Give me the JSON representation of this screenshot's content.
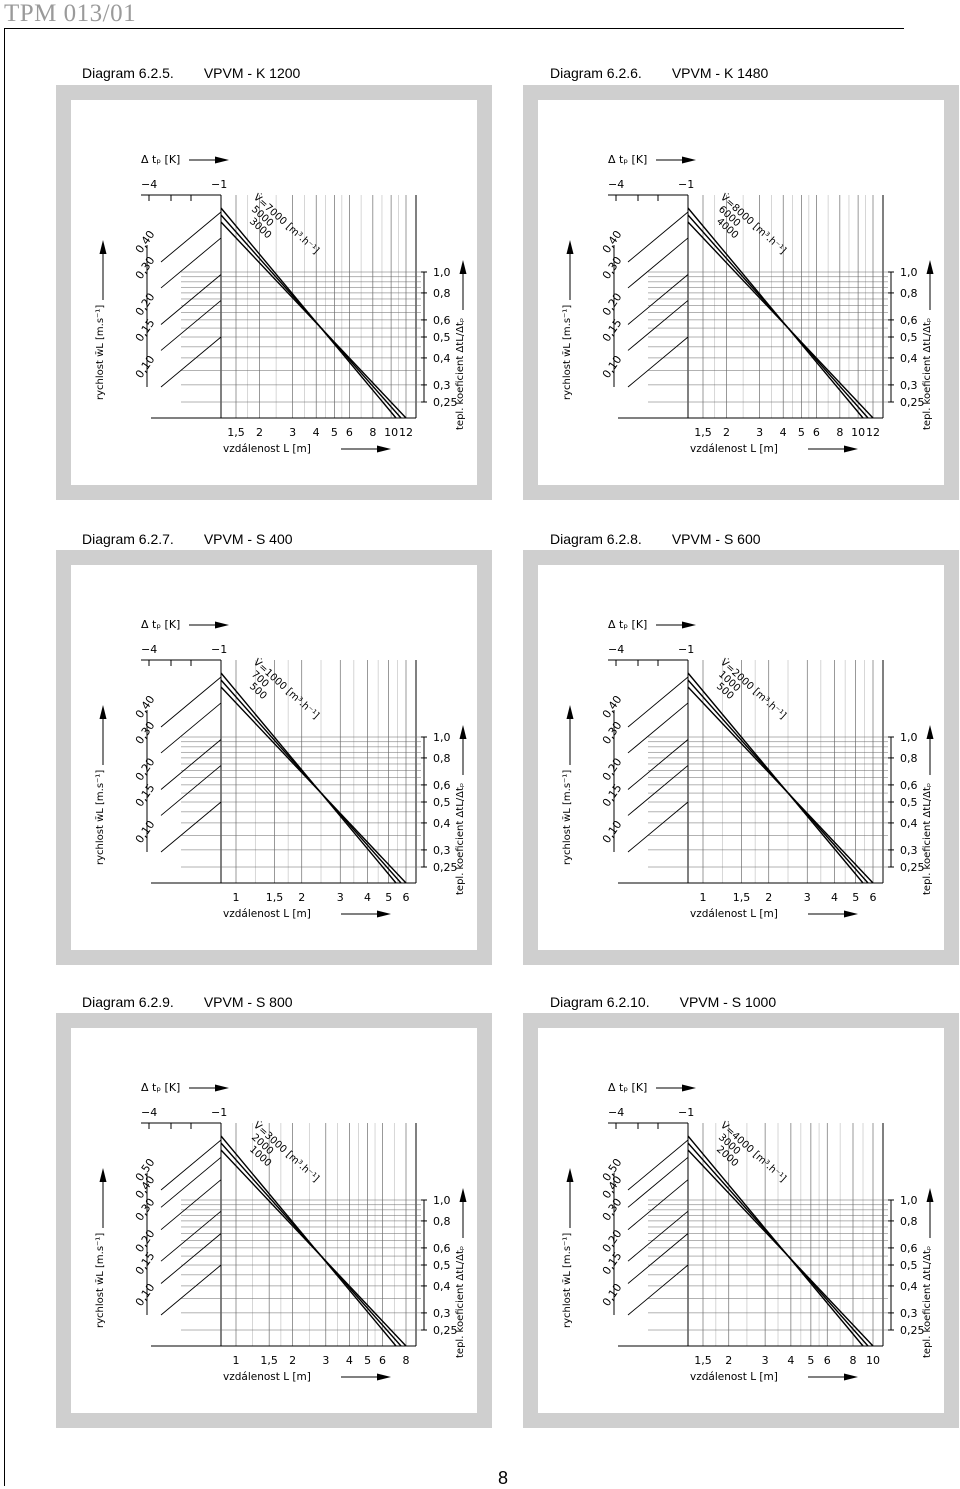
{
  "document": {
    "id": "TPM 013/01",
    "page_number": "8"
  },
  "labels": {
    "dt_p": "Δ tₚ [K]",
    "tick_dt_left": "−4",
    "tick_dt_right": "−1",
    "velocity_axis": "rychlost w̄L [m.s⁻¹]",
    "distance_axis": "vzdálenost L [m]",
    "coefficient_axis": "tepl. koeficient ΔtL/Δtₚ"
  },
  "chart_data": [
    {
      "type": "line",
      "diagram": "Diagram 6.2.5.",
      "title": "VPVM - K 1200",
      "velocity_ticks": [
        "0,10",
        "0,15",
        "0,20",
        "0,30",
        "0,40"
      ],
      "distance_ticks": [
        "1,5",
        "2",
        "3",
        "4",
        "5",
        "6",
        "8",
        "10",
        "12"
      ],
      "coefficient_ticks": [
        "1,0",
        "0,8",
        "0,6",
        "0,5",
        "0,4",
        "0,3",
        "0,25"
      ],
      "series": [
        {
          "name": "V̇=7000 [m³.h⁻¹]",
          "flow": 7000
        },
        {
          "name": "5000",
          "flow": 5000
        },
        {
          "name": "3000",
          "flow": 3000
        }
      ]
    },
    {
      "type": "line",
      "diagram": "Diagram 6.2.6.",
      "title": "VPVM - K 1480",
      "velocity_ticks": [
        "0,10",
        "0,15",
        "0,20",
        "0,30",
        "0,40"
      ],
      "distance_ticks": [
        "1,5",
        "2",
        "3",
        "4",
        "5",
        "6",
        "8",
        "10",
        "12"
      ],
      "coefficient_ticks": [
        "1,0",
        "0,8",
        "0,6",
        "0,5",
        "0,4",
        "0,3",
        "0,25"
      ],
      "series": [
        {
          "name": "V̇=8000 [m³.h⁻¹]",
          "flow": 8000
        },
        {
          "name": "6000",
          "flow": 6000
        },
        {
          "name": "4000",
          "flow": 4000
        }
      ]
    },
    {
      "type": "line",
      "diagram": "Diagram 6.2.7.",
      "title": "VPVM - S 400",
      "velocity_ticks": [
        "0,10",
        "0,15",
        "0,20",
        "0,30",
        "0,40"
      ],
      "distance_ticks": [
        "1",
        "1,5",
        "2",
        "3",
        "4",
        "5",
        "6"
      ],
      "coefficient_ticks": [
        "1,0",
        "0,8",
        "0,6",
        "0,5",
        "0,4",
        "0,3",
        "0,25"
      ],
      "series": [
        {
          "name": "V̇=1000 [m³.h⁻¹]",
          "flow": 1000
        },
        {
          "name": "700",
          "flow": 700
        },
        {
          "name": "500",
          "flow": 500
        }
      ]
    },
    {
      "type": "line",
      "diagram": "Diagram 6.2.8.",
      "title": "VPVM - S 600",
      "velocity_ticks": [
        "0,10",
        "0,15",
        "0,20",
        "0,30",
        "0,40"
      ],
      "distance_ticks": [
        "1",
        "1,5",
        "2",
        "3",
        "4",
        "5",
        "6"
      ],
      "coefficient_ticks": [
        "1,0",
        "0,8",
        "0,6",
        "0,5",
        "0,4",
        "0,3",
        "0,25"
      ],
      "series": [
        {
          "name": "V̇=2000 [m³.h⁻¹]",
          "flow": 2000
        },
        {
          "name": "1000",
          "flow": 1000
        },
        {
          "name": "500",
          "flow": 500
        }
      ]
    },
    {
      "type": "line",
      "diagram": "Diagram 6.2.9.",
      "title": "VPVM - S 800",
      "velocity_ticks": [
        "0,10",
        "0,15",
        "0,20",
        "0,30",
        "0,40",
        "0,50"
      ],
      "distance_ticks": [
        "1",
        "1,5",
        "2",
        "3",
        "4",
        "5",
        "6",
        "8"
      ],
      "coefficient_ticks": [
        "1,0",
        "0,8",
        "0,6",
        "0,5",
        "0,4",
        "0,3",
        "0,25"
      ],
      "series": [
        {
          "name": "V̇=3000 [m³.h⁻¹]",
          "flow": 3000
        },
        {
          "name": "2000",
          "flow": 2000
        },
        {
          "name": "1000",
          "flow": 1000
        }
      ]
    },
    {
      "type": "line",
      "diagram": "Diagram 6.2.10.",
      "title": "VPVM - S 1000",
      "velocity_ticks": [
        "0,10",
        "0,15",
        "0,20",
        "0,30",
        "0,40",
        "0,50"
      ],
      "distance_ticks": [
        "1,5",
        "2",
        "3",
        "4",
        "5",
        "6",
        "8",
        "10"
      ],
      "coefficient_ticks": [
        "1,0",
        "0,8",
        "0,6",
        "0,5",
        "0,4",
        "0,3",
        "0,25"
      ],
      "series": [
        {
          "name": "V̇=4000 [m³.h⁻¹]",
          "flow": 4000
        },
        {
          "name": "3000",
          "flow": 3000
        },
        {
          "name": "2000",
          "flow": 2000
        }
      ]
    }
  ]
}
